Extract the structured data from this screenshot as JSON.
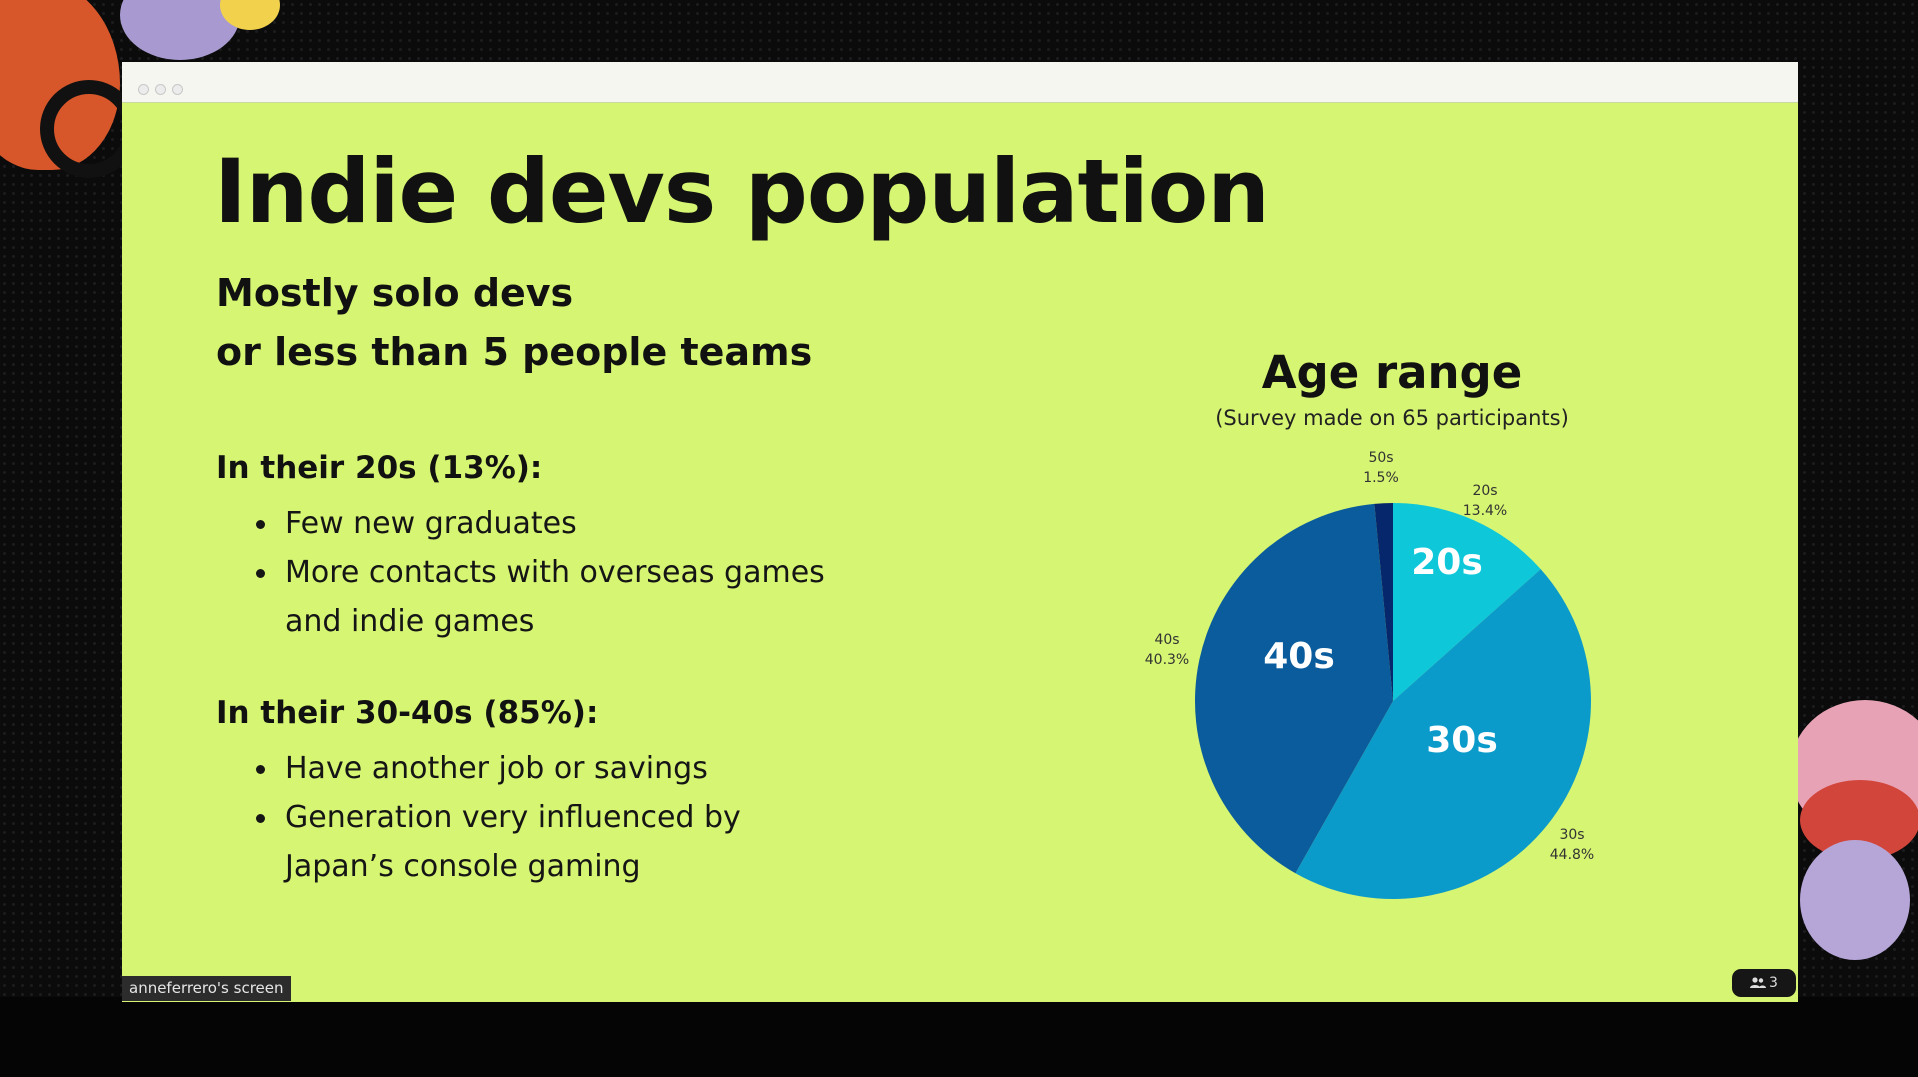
{
  "slide": {
    "title": "Indie devs population",
    "subtitle": [
      "Mostly solo devs",
      "or less than 5 people teams"
    ],
    "sections": [
      {
        "heading": "In their 20s (13%):",
        "bullets": [
          "Few new graduates",
          "More contacts with overseas games",
          "and indie games"
        ]
      },
      {
        "heading": "In their 30-40s (85%):",
        "bullets": [
          "Have another job or savings",
          "Generation very influenced by",
          "Japan’s console gaming"
        ]
      }
    ]
  },
  "chart_data": {
    "type": "pie",
    "title": "Age range",
    "subtitle": "(Survey made on 65 participants)",
    "slices": [
      {
        "label": "20s",
        "value": 13.4,
        "pct_label": "13.4%",
        "color": "#0ec8da"
      },
      {
        "label": "30s",
        "value": 44.8,
        "pct_label": "44.8%",
        "color": "#0b9bcb"
      },
      {
        "label": "40s",
        "value": 40.3,
        "pct_label": "40.3%",
        "color": "#0a5c9c"
      },
      {
        "label": "50s",
        "value": 1.5,
        "pct_label": "1.5%",
        "color": "#06276b"
      }
    ],
    "start": "top",
    "direction": "clockwise"
  },
  "overlay": {
    "screen_label": "anneferrero's screen",
    "participants_count": "3"
  }
}
